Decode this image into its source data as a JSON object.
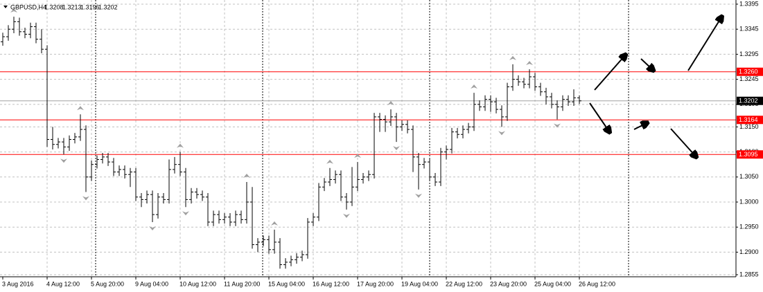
{
  "chart_data": {
    "type": "ohlc",
    "symbol": "GBPUSD,H4",
    "categories": [
      "3 Aug 2016",
      null,
      null,
      null,
      null,
      null,
      null,
      null,
      "4 Aug 12:00",
      null,
      null,
      null,
      null,
      null,
      null,
      null,
      "5 Aug 20:00",
      null,
      null,
      null,
      null,
      null,
      null,
      null,
      "9 Aug 04:00",
      null,
      null,
      null,
      null,
      null,
      null,
      null,
      "10 Aug 12:00",
      null,
      null,
      null,
      null,
      null,
      null,
      null,
      "11 Aug 20:00",
      null,
      null,
      null,
      null,
      null,
      null,
      null,
      "15 Aug 04:00",
      null,
      null,
      null,
      null,
      null,
      null,
      null,
      "16 Aug 12:00",
      null,
      null,
      null,
      null,
      null,
      null,
      null,
      "17 Aug 20:00",
      null,
      null,
      null,
      null,
      null,
      null,
      null,
      "19 Aug 04:00",
      null,
      null,
      null,
      null,
      null,
      null,
      null,
      "22 Aug 12:00",
      null,
      null,
      null,
      null,
      null,
      null,
      null,
      "23 Aug 20:00",
      null,
      null,
      null,
      null,
      null,
      null,
      null,
      "25 Aug 04:00",
      null,
      null,
      null,
      null,
      null,
      null,
      null,
      "26 Aug 12:00"
    ],
    "open": [
      1.332,
      1.333,
      1.3345,
      1.336,
      1.334,
      1.3335,
      1.335,
      1.3325,
      1.3305,
      1.3125,
      1.3115,
      1.312,
      1.311,
      1.3125,
      1.313,
      1.3145,
      1.305,
      1.3075,
      1.3085,
      1.309,
      1.308,
      1.306,
      1.3065,
      1.3055,
      1.306,
      1.301,
      1.3005,
      1.3015,
      1.2975,
      1.301,
      1.3005,
      1.3065,
      1.3075,
      1.306,
      1.3005,
      1.302,
      1.3015,
      1.301,
      1.296,
      1.2975,
      1.2965,
      1.297,
      1.296,
      1.2975,
      1.2965,
      1.3,
      1.2915,
      1.292,
      1.2925,
      1.2905,
      1.292,
      1.2875,
      1.288,
      1.2885,
      1.289,
      1.2895,
      1.296,
      1.297,
      1.303,
      1.304,
      1.3045,
      1.3055,
      1.301,
      1.3,
      1.303,
      1.3045,
      1.305,
      1.3055,
      1.317,
      1.3165,
      1.316,
      1.317,
      1.315,
      1.3155,
      1.3145,
      1.309,
      1.3075,
      1.308,
      1.305,
      1.304,
      1.31,
      1.3105,
      1.314,
      1.3135,
      1.3145,
      1.315,
      1.3195,
      1.319,
      1.3205,
      1.32,
      1.3185,
      1.317,
      1.323,
      1.3245,
      1.324,
      1.3235,
      1.325,
      1.323,
      1.322,
      1.321,
      1.3195,
      1.319,
      1.3205,
      1.32,
      1.3208
    ],
    "high": [
      1.3338,
      1.3353,
      1.337,
      1.3368,
      1.3348,
      1.3358,
      1.3358,
      1.3345,
      1.3313,
      1.315,
      1.3128,
      1.3128,
      1.3133,
      1.3138,
      1.3175,
      1.3153,
      1.3083,
      1.3093,
      1.3098,
      1.3098,
      1.3088,
      1.3073,
      1.3073,
      1.3068,
      1.3068,
      1.3018,
      1.3023,
      1.3023,
      1.3018,
      1.3018,
      1.3085,
      1.309,
      1.31,
      1.3068,
      1.3028,
      1.3028,
      1.3023,
      1.3018,
      1.2983,
      1.2983,
      1.2978,
      1.2978,
      1.2983,
      1.2983,
      1.304,
      1.303,
      1.2928,
      1.2933,
      1.2933,
      1.2945,
      1.2928,
      1.2888,
      1.2893,
      1.2898,
      1.2903,
      1.2968,
      1.2978,
      1.3038,
      1.3048,
      1.3068,
      1.3063,
      1.3063,
      1.3018,
      1.307,
      1.308,
      1.3058,
      1.3063,
      1.3178,
      1.3178,
      1.3173,
      1.3185,
      1.3178,
      1.3163,
      1.3163,
      1.3153,
      1.3098,
      1.3088,
      1.3088,
      1.3058,
      1.3108,
      1.3113,
      1.3148,
      1.3148,
      1.3153,
      1.3158,
      1.3218,
      1.3203,
      1.3213,
      1.3213,
      1.3208,
      1.3193,
      1.3238,
      1.3275,
      1.3253,
      1.3248,
      1.3265,
      1.3258,
      1.3238,
      1.3228,
      1.3218,
      1.3203,
      1.3213,
      1.3213,
      1.3225,
      1.3213
    ],
    "low": [
      1.3312,
      1.3322,
      1.3337,
      1.3332,
      1.3327,
      1.3327,
      1.3317,
      1.3297,
      1.311,
      1.3105,
      1.3107,
      1.3095,
      1.3102,
      1.3117,
      1.3122,
      1.302,
      1.3042,
      1.3067,
      1.3077,
      1.3072,
      1.3052,
      1.3052,
      1.3047,
      1.303,
      1.3002,
      1.299,
      1.2997,
      1.296,
      1.2967,
      1.2997,
      1.2997,
      1.3057,
      1.3052,
      1.299,
      1.2997,
      1.3007,
      1.3002,
      1.2952,
      1.2952,
      1.2957,
      1.2957,
      1.2952,
      1.2952,
      1.2957,
      1.2957,
      1.2907,
      1.29,
      1.2912,
      1.2897,
      1.2897,
      1.2867,
      1.2867,
      1.2872,
      1.2877,
      1.2882,
      1.2887,
      1.2952,
      1.2962,
      1.3022,
      1.3032,
      1.3037,
      1.3002,
      1.2985,
      1.2992,
      1.3022,
      1.3037,
      1.3042,
      1.3047,
      1.314,
      1.314,
      1.3152,
      1.312,
      1.3142,
      1.3137,
      1.306,
      1.3025,
      1.3067,
      1.3042,
      1.3032,
      1.3032,
      1.3085,
      1.3097,
      1.3127,
      1.3127,
      1.3137,
      1.3142,
      1.3182,
      1.3182,
      1.318,
      1.3177,
      1.315,
      1.3162,
      1.3222,
      1.3232,
      1.3227,
      1.3227,
      1.3222,
      1.3212,
      1.3195,
      1.3187,
      1.3165,
      1.3182,
      1.3192,
      1.3192,
      1.3196
    ],
    "close": [
      1.333,
      1.3345,
      1.336,
      1.334,
      1.3335,
      1.335,
      1.3325,
      1.3305,
      1.3125,
      1.3115,
      1.312,
      1.311,
      1.3125,
      1.313,
      1.3145,
      1.305,
      1.3075,
      1.3085,
      1.309,
      1.308,
      1.306,
      1.3065,
      1.3055,
      1.306,
      1.301,
      1.3005,
      1.3015,
      1.2975,
      1.301,
      1.3005,
      1.3065,
      1.3075,
      1.306,
      1.3005,
      1.302,
      1.3015,
      1.301,
      1.296,
      1.2975,
      1.2965,
      1.297,
      1.296,
      1.2975,
      1.2965,
      1.3,
      1.2915,
      1.292,
      1.2925,
      1.2905,
      1.292,
      1.2875,
      1.288,
      1.2885,
      1.289,
      1.2895,
      1.296,
      1.297,
      1.303,
      1.304,
      1.3045,
      1.3055,
      1.301,
      1.3,
      1.303,
      1.3045,
      1.305,
      1.3055,
      1.317,
      1.3165,
      1.316,
      1.317,
      1.315,
      1.3155,
      1.3145,
      1.309,
      1.3075,
      1.308,
      1.305,
      1.304,
      1.31,
      1.3105,
      1.314,
      1.3135,
      1.3145,
      1.315,
      1.3195,
      1.319,
      1.3205,
      1.32,
      1.3185,
      1.317,
      1.323,
      1.3245,
      1.324,
      1.3235,
      1.325,
      1.323,
      1.322,
      1.321,
      1.3195,
      1.319,
      1.3205,
      1.32,
      1.3208,
      1.3202
    ],
    "color": "#000000",
    "ylim": [
      1.2855,
      1.3395
    ],
    "yticks": [
      1.3395,
      1.3345,
      1.3295,
      1.3245,
      1.3195,
      {
        "value": 1.315,
        "label": "1.3150"
      },
      {
        "value": 1.31,
        "label": "1.3100"
      },
      {
        "value": 1.305,
        "label": "1.3050"
      },
      {
        "value": 1.3,
        "label": "1.3000"
      },
      {
        "value": 1.295,
        "label": "1.2950"
      },
      {
        "value": 1.29,
        "label": "1.2900"
      },
      1.2855
    ],
    "levels": [
      {
        "value": 1.326,
        "label": "1.3260"
      },
      {
        "value": 1.3164,
        "label": "1.3164"
      },
      {
        "value": 1.3095,
        "label": "1.3095"
      }
    ],
    "level_color": "#ff0000",
    "grid": true
  }
}
